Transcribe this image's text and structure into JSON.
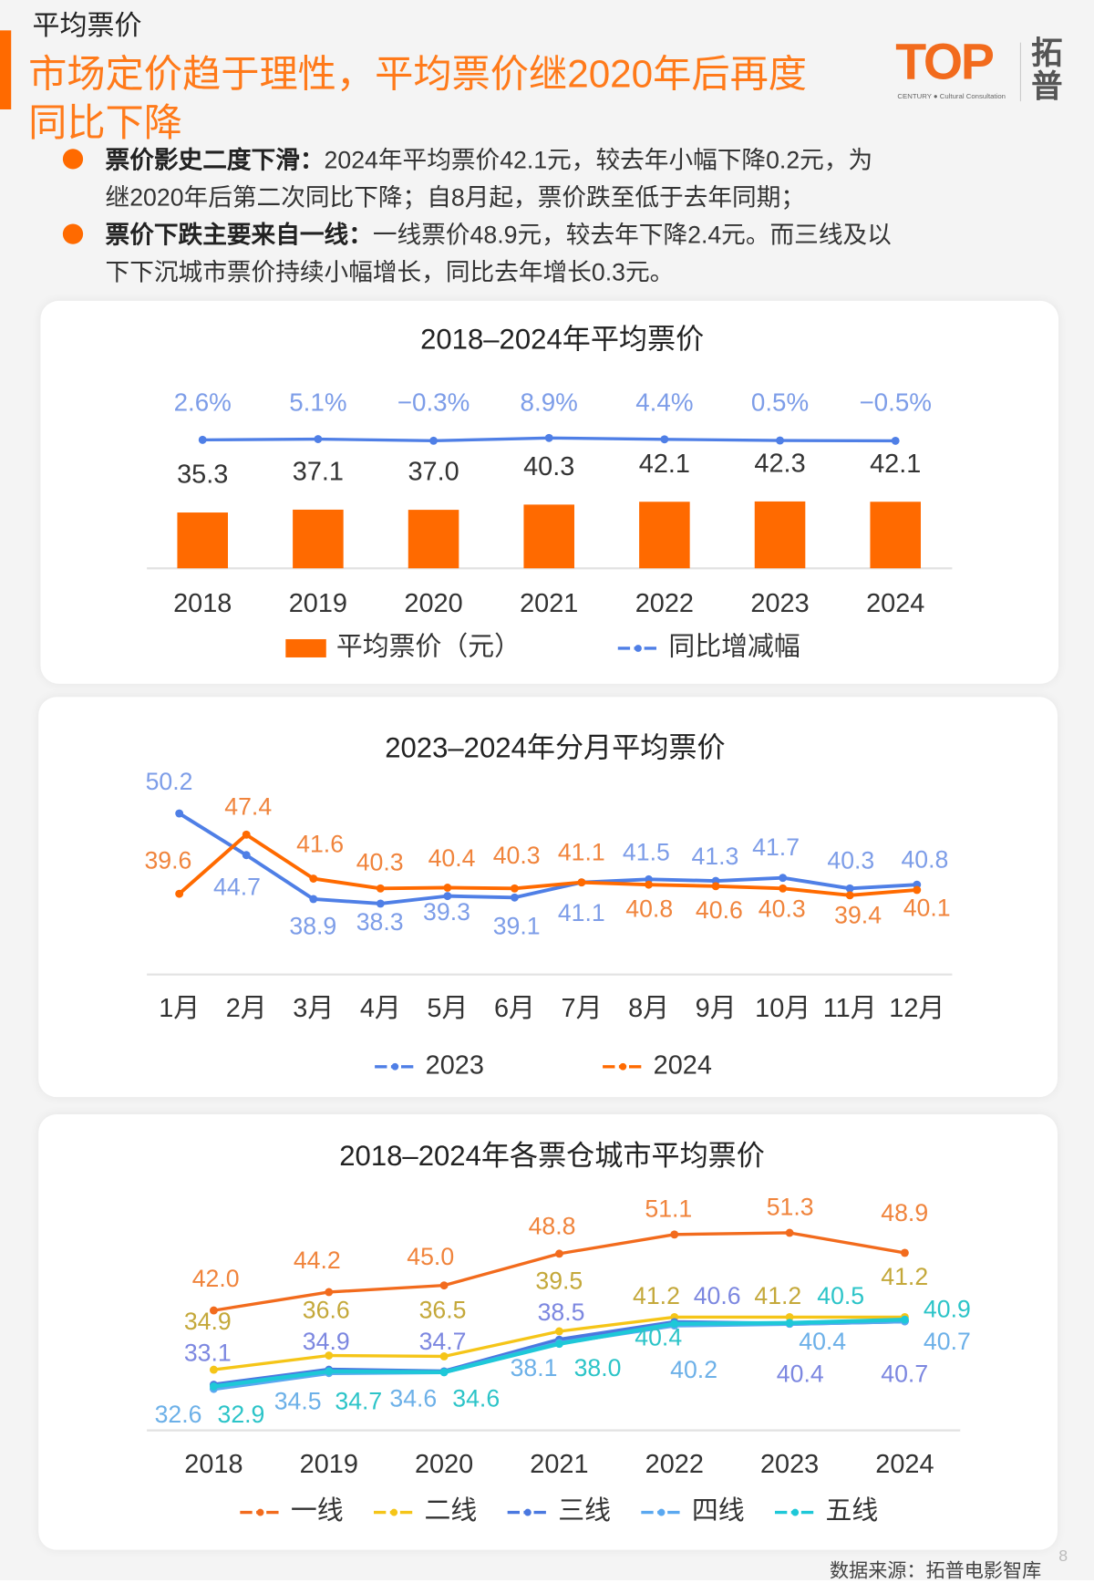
{
  "header": {
    "section_title": "平均票价",
    "headline_lines": [
      "市场定价趋于理性，平均票价继2020年后再度",
      "同比下降"
    ]
  },
  "logo": {
    "text": "TOP",
    "cn": "拓普",
    "tagline": "CENTURY ● Cultural Consultation"
  },
  "bullets": [
    {
      "title": "票价影史二度下滑：",
      "lines": [
        "2024年平均票价42.1元，较去年小幅下降0.2元，为",
        "继2020年后第二次同比下降；自8月起，票价跌至低于去年同期；"
      ]
    },
    {
      "title": "票价下跌主要来自一线：",
      "lines": [
        "一线票价48.9元，较去年下降2.4元。而三线及以",
        "下下沉城市票价持续小幅增长，同比去年增长0.3元。"
      ]
    }
  ],
  "footer": {
    "source": "数据来源：拓普电影智库",
    "page_number": "8"
  },
  "colors": {
    "accent": "#ff6a00",
    "blue": "#4f7fe6",
    "tier1": "#f26b1d",
    "tier2": "#f5c518",
    "tier3": "#4a78e0",
    "tier4": "#5aa8f0",
    "tier5": "#1ec8d8"
  },
  "chart_data": [
    {
      "type": "bar",
      "title": "2018–2024年平均票价",
      "categories": [
        "2018",
        "2019",
        "2020",
        "2021",
        "2022",
        "2023",
        "2024"
      ],
      "series": [
        {
          "name": "平均票价（元）",
          "type": "bar",
          "color": "#ff6a00",
          "values": [
            35.3,
            37.1,
            37.0,
            40.3,
            42.1,
            42.3,
            42.1
          ]
        },
        {
          "name": "同比增减幅",
          "type": "line",
          "color": "#4f7fe6",
          "values": [
            "2.6%",
            "5.1%",
            "-0.3%",
            "8.9%",
            "4.4%",
            "0.5%",
            "-0.5%"
          ]
        }
      ],
      "legend": "bottom",
      "grid": false
    },
    {
      "type": "line",
      "title": "2023–2024年分月平均票价",
      "categories": [
        "1月",
        "2月",
        "3月",
        "4月",
        "5月",
        "6月",
        "7月",
        "8月",
        "9月",
        "10月",
        "11月",
        "12月"
      ],
      "series": [
        {
          "name": "2023",
          "color": "#4f7fe6",
          "values": [
            50.2,
            44.7,
            38.9,
            38.3,
            39.3,
            39.1,
            41.1,
            41.5,
            41.3,
            41.7,
            40.3,
            40.8
          ]
        },
        {
          "name": "2024",
          "color": "#ff6a00",
          "values": [
            39.6,
            47.4,
            41.6,
            40.3,
            40.4,
            40.3,
            41.1,
            40.8,
            40.6,
            40.3,
            39.4,
            40.1
          ]
        }
      ],
      "legend": "bottom",
      "grid": false
    },
    {
      "type": "line",
      "title": "2018–2024年各票仓城市平均票价",
      "categories": [
        "2018",
        "2019",
        "2020",
        "2021",
        "2022",
        "2023",
        "2024"
      ],
      "series": [
        {
          "name": "一线",
          "color": "#f26b1d",
          "values": [
            42.0,
            44.2,
            45.0,
            48.8,
            51.1,
            51.3,
            48.9
          ]
        },
        {
          "name": "二线",
          "color": "#f5c518",
          "values": [
            34.9,
            36.6,
            36.5,
            39.5,
            41.2,
            41.2,
            41.2
          ]
        },
        {
          "name": "三线",
          "color": "#4a78e0",
          "values": [
            33.1,
            34.9,
            34.7,
            38.5,
            40.6,
            40.4,
            40.7
          ]
        },
        {
          "name": "四线",
          "color": "#5aa8f0",
          "values": [
            32.6,
            34.5,
            34.6,
            38.1,
            40.2,
            40.4,
            40.7
          ]
        },
        {
          "name": "五线",
          "color": "#1ec8d8",
          "values": [
            32.9,
            34.7,
            34.6,
            38.0,
            40.4,
            40.5,
            40.9
          ]
        }
      ],
      "legend": "bottom",
      "grid": false
    }
  ]
}
